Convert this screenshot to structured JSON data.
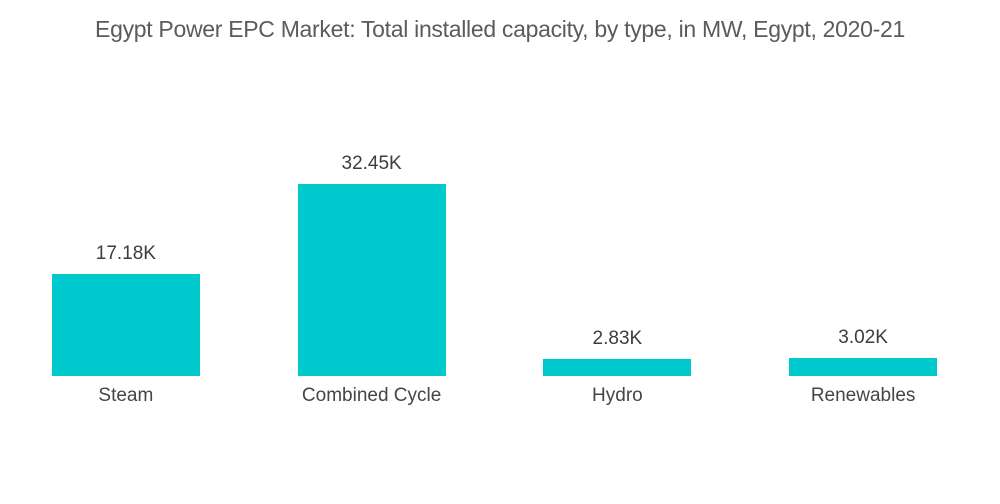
{
  "chart_data": {
    "type": "bar",
    "title": "Egypt Power EPC Market: Total installed capacity, by type, in MW, Egypt, 2020-21",
    "categories": [
      "Steam",
      "Combined Cycle",
      "Hydro",
      "Renewables"
    ],
    "values": [
      17180,
      32450,
      2830,
      3020
    ],
    "value_labels": [
      "17.18K",
      "32.45K",
      "2.83K",
      "3.02K"
    ],
    "series_unit": "MW",
    "bar_color": "#00c9ce",
    "title_color": "#5a5b5d",
    "label_color": "#3c3d3f",
    "xlabel": "",
    "ylabel": "",
    "ylim": [
      0,
      32450
    ],
    "grid": false,
    "legend": false,
    "axes_visible": false,
    "data_labels_position": "above-bar",
    "background": "#ffffff"
  }
}
